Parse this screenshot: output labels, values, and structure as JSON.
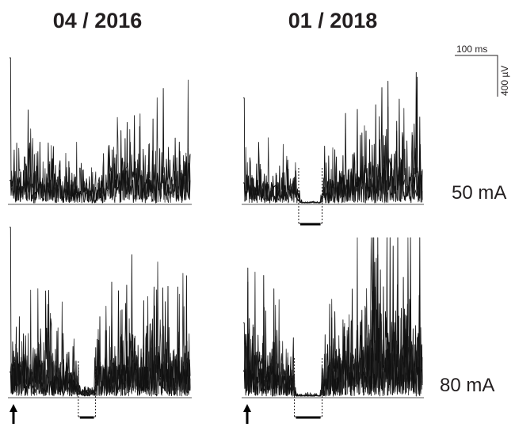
{
  "chart_data": [
    {
      "type": "line",
      "column_title": "04 / 2016",
      "row_label": "",
      "stimulus_arrow": false,
      "silent_window": false,
      "series_count": 3,
      "duration_ms": 420,
      "amplitude_uv": [
        0,
        900
      ],
      "stim_artifact_uv": 850,
      "profile": [
        [
          0,
          230
        ],
        [
          20,
          280
        ],
        [
          60,
          240
        ],
        [
          100,
          190
        ],
        [
          150,
          150
        ],
        [
          200,
          130
        ],
        [
          230,
          260
        ],
        [
          270,
          300
        ],
        [
          310,
          280
        ],
        [
          350,
          250
        ],
        [
          390,
          230
        ],
        [
          420,
          260
        ]
      ],
      "seed": 11
    },
    {
      "type": "line",
      "column_title": "01 / 2018",
      "row_label": "50 mA",
      "stimulus_arrow": false,
      "silent_window": true,
      "window_ms": [
        130,
        185
      ],
      "series_count": 3,
      "duration_ms": 420,
      "amplitude_uv": [
        0,
        900
      ],
      "stim_artifact_uv": 650,
      "profile": [
        [
          0,
          220
        ],
        [
          30,
          180
        ],
        [
          80,
          150
        ],
        [
          125,
          150
        ],
        [
          135,
          8
        ],
        [
          180,
          8
        ],
        [
          190,
          170
        ],
        [
          240,
          250
        ],
        [
          300,
          300
        ],
        [
          350,
          320
        ],
        [
          400,
          300
        ],
        [
          420,
          280
        ]
      ],
      "seed": 23
    },
    {
      "type": "line",
      "column_title": "",
      "row_label": "",
      "stimulus_arrow": true,
      "silent_window": true,
      "window_ms": [
        160,
        200
      ],
      "series_count": 5,
      "duration_ms": 420,
      "amplitude_uv": [
        0,
        900
      ],
      "stim_artifact_uv": 880,
      "profile": [
        [
          0,
          220
        ],
        [
          30,
          240
        ],
        [
          80,
          210
        ],
        [
          150,
          160
        ],
        [
          165,
          40
        ],
        [
          195,
          40
        ],
        [
          210,
          230
        ],
        [
          270,
          260
        ],
        [
          330,
          280
        ],
        [
          380,
          250
        ],
        [
          420,
          240
        ]
      ],
      "seed": 37
    },
    {
      "type": "line",
      "column_title": "",
      "row_label": "80 mA",
      "stimulus_arrow": true,
      "silent_window": true,
      "window_ms": [
        120,
        185
      ],
      "series_count": 5,
      "duration_ms": 420,
      "amplitude_uv": [
        0,
        900
      ],
      "stim_artifact_uv": 420,
      "profile": [
        [
          0,
          250
        ],
        [
          30,
          280
        ],
        [
          80,
          240
        ],
        [
          115,
          200
        ],
        [
          125,
          8
        ],
        [
          180,
          8
        ],
        [
          195,
          220
        ],
        [
          250,
          330
        ],
        [
          300,
          400
        ],
        [
          350,
          420
        ],
        [
          400,
          380
        ],
        [
          420,
          360
        ]
      ],
      "seed": 53
    }
  ],
  "scale_bar": {
    "time_label": "100 ms",
    "amplitude_label": "400 µV"
  },
  "colors": {
    "trace": "#2b2b2b",
    "text": "#231f20",
    "background": "#ffffff"
  },
  "icons": {
    "stimulus": "up-arrow-icon"
  }
}
